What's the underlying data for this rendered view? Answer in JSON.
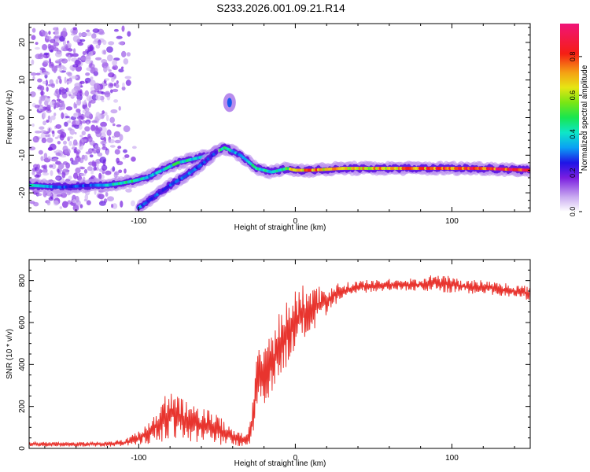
{
  "title": "S233.2026.001.09.21.R14",
  "chart_data": [
    {
      "type": "heatmap",
      "xlabel": "Height of straight line (km)",
      "ylabel": "Frequency (Hz)",
      "xlim": [
        -170,
        150
      ],
      "ylim": [
        -25,
        25
      ],
      "xticks": [
        -100,
        0,
        100
      ],
      "yticks": [
        -20,
        -10,
        0,
        10,
        20
      ],
      "colorbar": {
        "label": "Normalized spectral amplitude",
        "range": [
          0,
          0.97
        ],
        "ticks": [
          "0.0",
          "0.2",
          "0.4",
          "0.6",
          "0.8"
        ]
      },
      "ridges": [
        {
          "name": "",
          "x": [
            -170,
            -150,
            -130,
            -120,
            -105,
            -95,
            -85,
            -75,
            -65,
            -55,
            -45,
            -35,
            -25,
            -15,
            -5,
            0,
            10,
            30,
            60,
            90,
            120,
            150
          ],
          "y": [
            -18,
            -18.5,
            -18,
            -18,
            -17,
            -16,
            -14,
            -12,
            -11,
            -10,
            -8,
            -10,
            -13.5,
            -14.5,
            -13.5,
            -14,
            -14,
            -13.5,
            -13.5,
            -13.5,
            -13.5,
            -14
          ],
          "amp": [
            0.5,
            0.3,
            0.3,
            0.4,
            0.5,
            0.4,
            0.4,
            0.5,
            0.4,
            0.5,
            0.5,
            0.3,
            0.5,
            0.4,
            0.6,
            0.7,
            0.8,
            0.7,
            0.75,
            0.85,
            0.9,
            0.95
          ]
        },
        {
          "name": "",
          "x": [
            -100,
            -90,
            -80,
            -70,
            -60,
            -50
          ],
          "y": [
            -24,
            -21,
            -18,
            -15.5,
            -12.5,
            -9
          ],
          "amp": [
            0.35,
            0.3,
            0.3,
            0.35,
            0.3,
            0.3
          ]
        },
        {
          "name": "",
          "x": [
            -42
          ],
          "y": [
            4
          ],
          "amp": [
            0.3
          ]
        }
      ]
    },
    {
      "type": "line",
      "xlabel": "Height of straight line (km)",
      "ylabel": "SNR (10 * v/v)",
      "xlim": [
        -170,
        150
      ],
      "ylim": [
        0,
        900
      ],
      "xticks": [
        -100,
        0,
        100
      ],
      "yticks": [
        0,
        200,
        400,
        600,
        800
      ],
      "series": [
        {
          "name": "",
          "color": "#e8342e",
          "x": [
            -170,
            -150,
            -130,
            -110,
            -100,
            -95,
            -90,
            -85,
            -80,
            -75,
            -70,
            -65,
            -60,
            -55,
            -50,
            -45,
            -40,
            -35,
            -30,
            -27,
            -25,
            -22,
            -20,
            -17,
            -15,
            -12,
            -10,
            -7,
            -5,
            -2,
            0,
            5,
            10,
            15,
            20,
            25,
            30,
            35,
            40,
            50,
            60,
            70,
            80,
            90,
            100,
            110,
            120,
            130,
            140,
            150
          ],
          "y": [
            20,
            20,
            20,
            25,
            50,
            70,
            100,
            130,
            170,
            150,
            130,
            120,
            110,
            110,
            90,
            70,
            60,
            40,
            50,
            150,
            300,
            350,
            330,
            400,
            420,
            450,
            500,
            520,
            560,
            580,
            600,
            640,
            660,
            680,
            700,
            730,
            750,
            760,
            770,
            775,
            780,
            780,
            780,
            790,
            780,
            770,
            770,
            760,
            750,
            740
          ],
          "noise": [
            10,
            10,
            10,
            15,
            30,
            50,
            60,
            90,
            120,
            100,
            90,
            80,
            80,
            80,
            70,
            50,
            40,
            30,
            40,
            90,
            120,
            130,
            130,
            140,
            140,
            150,
            150,
            150,
            150,
            140,
            140,
            130,
            110,
            90,
            70,
            50,
            40,
            30,
            30,
            25,
            25,
            25,
            30,
            40,
            35,
            30,
            30,
            30,
            30,
            30
          ]
        }
      ]
    }
  ]
}
